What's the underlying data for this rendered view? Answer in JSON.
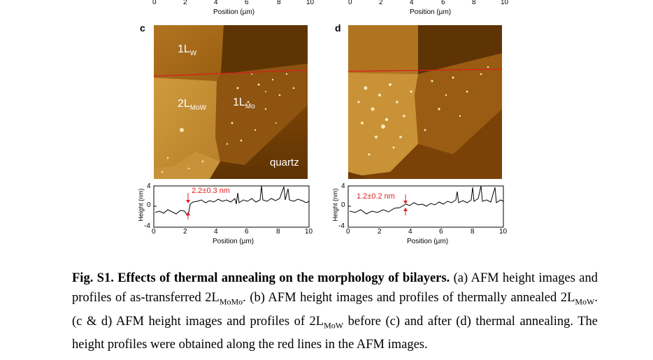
{
  "top_axis": {
    "left_ticks": [
      "0",
      "2",
      "4",
      "6",
      "8",
      "10"
    ],
    "right_ticks": [
      "0",
      "2",
      "4",
      "6",
      "8",
      "10"
    ],
    "xlabel": "Position (µm)"
  },
  "panels": [
    {
      "letter": "c",
      "labels": {
        "layer_w": "1L",
        "layer_w_sub": "W",
        "layer_mow": "2L",
        "layer_mow_sub": "MoW",
        "layer_mo": "1L",
        "layer_mo_sub": "Mo",
        "substrate": "quartz"
      },
      "profile": {
        "ylabel": "Height (nm)",
        "y_ticks": [
          "4",
          "0",
          "-4"
        ],
        "x_ticks": [
          "0",
          "2",
          "4",
          "6",
          "8",
          "10"
        ],
        "xlabel": "Position (µm)",
        "annotation": "2.2±0.3 nm"
      }
    },
    {
      "letter": "d",
      "profile": {
        "ylabel": "Height (nm)",
        "y_ticks": [
          "4",
          "0",
          "-4"
        ],
        "x_ticks": [
          "0",
          "2",
          "4",
          "6",
          "8",
          "10"
        ],
        "xlabel": "Position (µm)",
        "annotation": "1.2±0.2 nm"
      }
    }
  ],
  "caption": {
    "bold": "Fig. S1. Effects of thermal annealing on the morphology of bilayers.",
    "part1": " (a) AFM height images and profiles of as-transferred 2L",
    "sub1": "MoMo",
    "part2": ". (b) AFM height images and profiles of thermally annealed 2L",
    "sub2": "MoW",
    "part3": ". (c & d) AFM height images and profiles of 2L",
    "sub3": "MoW",
    "part4": " before (c) and after (d) thermal annealing. The height profiles were obtained along the red lines in the AFM images."
  },
  "colors": {
    "afm_dark": "#5a3000",
    "afm_mid": "#a86a12",
    "afm_light": "#d9a646",
    "profile_annotation": "#e0201e",
    "scan_line": "#d81e1e"
  }
}
